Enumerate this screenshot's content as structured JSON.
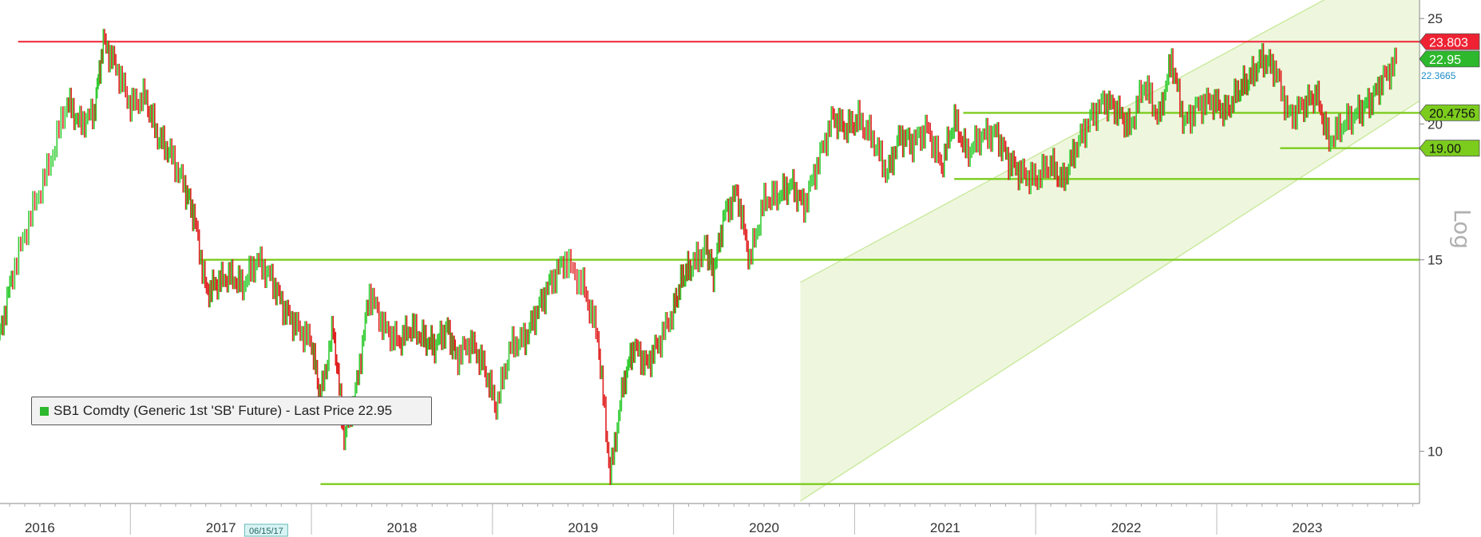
{
  "chart_data": {
    "type": "line",
    "style": "ohlc-bars",
    "instrument": "SB1 Comdty",
    "legend": {
      "entries": [
        {
          "label": "SB1 Comdty (Generic 1st 'SB' Future) - Last Price 22.95",
          "color": "#2db82d"
        }
      ],
      "placement": "bottom-left"
    },
    "y_scale": "log",
    "scale_label": "Log",
    "ylim": [
      9.0,
      26.0
    ],
    "y_ticks": [
      {
        "value": 10,
        "label": "10"
      },
      {
        "value": 15,
        "label": "15"
      },
      {
        "value": 20,
        "label": "20"
      },
      {
        "value": 25,
        "label": "25"
      }
    ],
    "xlim": [
      2015.28,
      2023.12
    ],
    "x_ticks": [
      "2016",
      "2017",
      "2018",
      "2019",
      "2020",
      "2021",
      "2022",
      "2023"
    ],
    "x_tick_positions": [
      2015.5,
      2016.5,
      2017.5,
      2018.5,
      2019.5,
      2020.5,
      2021.5,
      2022.5
    ],
    "cursor_date_label": "06/15/17",
    "cursor_date_value": 2016.75,
    "up_color": "#33cc33",
    "down_color": "#e02020",
    "series": [
      {
        "x": [
          2015.28,
          2015.35,
          2015.45,
          2015.55,
          2015.65,
          2015.72,
          2015.8,
          2015.85,
          2015.92,
          2016.0,
          2016.08,
          2016.15,
          2016.22,
          2016.3,
          2016.35,
          2016.42,
          2016.48,
          2016.55,
          2016.62,
          2016.7,
          2016.78,
          2016.85,
          2016.92,
          2017.0,
          2017.05,
          2017.12,
          2017.18,
          2017.25,
          2017.32,
          2017.4,
          2017.48,
          2017.55,
          2017.62,
          2017.68,
          2017.75,
          2017.8,
          2017.88,
          2017.95,
          2018.02,
          2018.1,
          2018.18,
          2018.25,
          2018.32,
          2018.4,
          2018.5,
          2018.58,
          2018.65,
          2018.72,
          2018.78,
          2018.85,
          2018.92,
          2019.0,
          2019.05,
          2019.1,
          2019.18,
          2019.22,
          2019.28,
          2019.35,
          2019.42,
          2019.5,
          2019.58,
          2019.65,
          2019.72,
          2019.8,
          2019.88,
          2019.95,
          2020.02,
          2020.1,
          2020.18,
          2020.25,
          2020.32,
          2020.4,
          2020.48,
          2020.55,
          2020.62,
          2020.7,
          2020.78,
          2020.85,
          2020.92,
          2021.0,
          2021.08,
          2021.15,
          2021.22,
          2021.3,
          2021.38,
          2021.45,
          2021.52,
          2021.6,
          2021.68,
          2021.75,
          2021.82,
          2021.9,
          2021.98,
          2022.05,
          2022.12,
          2022.18,
          2022.25,
          2022.32,
          2022.4,
          2022.48,
          2022.55,
          2022.62,
          2022.7,
          2022.78,
          2022.85,
          2022.92,
          2023.0
        ],
        "values": [
          12.8,
          14.6,
          16.5,
          18.3,
          21.0,
          20.0,
          20.5,
          23.8,
          22.6,
          20.8,
          21.2,
          19.5,
          18.8,
          17.5,
          16.5,
          14.0,
          14.3,
          14.5,
          14.2,
          15.0,
          14.4,
          13.5,
          13.0,
          12.6,
          11.2,
          13.0,
          10.3,
          11.5,
          14.0,
          13.0,
          12.6,
          13.0,
          12.7,
          12.5,
          13.0,
          12.2,
          12.6,
          12.0,
          11.0,
          12.5,
          12.7,
          13.5,
          14.3,
          15.0,
          14.2,
          12.8,
          9.5,
          11.5,
          12.5,
          12.0,
          12.6,
          13.5,
          14.5,
          14.8,
          15.4,
          14.6,
          16.5,
          17.3,
          15.0,
          17.0,
          17.2,
          17.6,
          16.8,
          18.5,
          20.3,
          19.8,
          20.2,
          19.4,
          18.0,
          19.5,
          19.2,
          19.8,
          18.3,
          20.2,
          18.8,
          19.5,
          19.6,
          18.5,
          18.0,
          17.8,
          18.4,
          17.7,
          19.0,
          20.2,
          21.0,
          20.6,
          19.8,
          21.8,
          20.2,
          22.95,
          20.0,
          20.8,
          21.0,
          20.5,
          21.5,
          22.0,
          22.95,
          22.5,
          20.3,
          20.8,
          21.3,
          19.3,
          20.0,
          20.5,
          21.0,
          22.0,
          22.95
        ]
      }
    ],
    "reference_lines": [
      {
        "value": 23.803,
        "label": "23.803",
        "color": "#ee2233",
        "x_from": 2015.38
      },
      {
        "value": 20.4756,
        "label": "20.4756",
        "color": "#7ccc1e",
        "x_from": 2020.6
      },
      {
        "value": 19.0,
        "label": "19.00",
        "color": "#7ccc1e",
        "x_from": 2022.35
      },
      {
        "value": 17.8,
        "label": "",
        "color": "#7ccc1e",
        "x_from": 2020.55
      },
      {
        "value": 15.0,
        "label": "",
        "color": "#7ccc1e",
        "x_from": 2016.38
      },
      {
        "value": 9.33,
        "label": "",
        "color": "#7ccc1e",
        "x_from": 2017.05
      }
    ],
    "last_price_tag": {
      "value": 22.95,
      "label": "22.95",
      "color": "#2db82d"
    },
    "secondary_value": {
      "value": 22.3665,
      "label": "22.3665",
      "color": "#1a8cc9"
    },
    "channel": {
      "color": "#c8e89a",
      "fill": "#eef7dd",
      "start_x": 2019.7,
      "end_x": 2023.12,
      "upper_start": 14.3,
      "upper_end": 29.0,
      "lower_start": 9.0,
      "lower_end": 21.0
    },
    "grid": false
  }
}
